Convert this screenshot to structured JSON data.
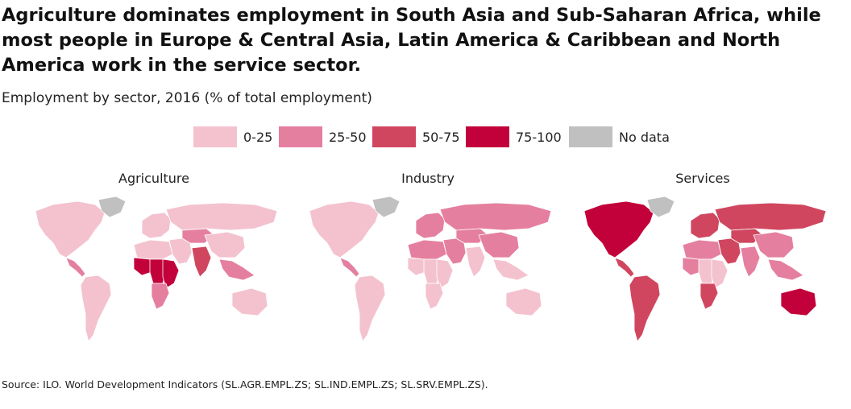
{
  "title": "Agriculture dominates employment in South Asia and Sub-Saharan Africa, while most people in Europe & Central Asia, Latin America & Caribbean and North America work in the service sector.",
  "subtitle": "Employment by sector, 2016 (% of total employment)",
  "legend": [
    {
      "label": "0-25",
      "color": "#f4c2cf"
    },
    {
      "label": "25-50",
      "color": "#e57f9f"
    },
    {
      "label": "50-75",
      "color": "#d0465f"
    },
    {
      "label": "75-100",
      "color": "#c2003a"
    },
    {
      "label": "No data",
      "color": "#c0c0c0"
    }
  ],
  "maps": [
    {
      "title": "Agriculture",
      "regions": {
        "greenland": "No data",
        "north_america": "0-25",
        "central_america": "25-50",
        "south_america": "0-25",
        "europe": "0-25",
        "russia": "0-25",
        "central_asia": "25-50",
        "middle_east": "0-25",
        "north_africa": "0-25",
        "west_africa": "75-100",
        "central_africa": "75-100",
        "east_africa": "75-100",
        "southern_africa": "25-50",
        "south_asia": "50-75",
        "china": "0-25",
        "southeast_asia": "25-50",
        "australia": "0-25"
      }
    },
    {
      "title": "Industry",
      "regions": {
        "greenland": "No data",
        "north_america": "0-25",
        "central_america": "25-50",
        "south_america": "0-25",
        "europe": "25-50",
        "russia": "25-50",
        "central_asia": "25-50",
        "middle_east": "25-50",
        "north_africa": "25-50",
        "west_africa": "0-25",
        "central_africa": "0-25",
        "east_africa": "0-25",
        "southern_africa": "0-25",
        "south_asia": "0-25",
        "china": "25-50",
        "southeast_asia": "0-25",
        "australia": "0-25"
      }
    },
    {
      "title": "Services",
      "regions": {
        "greenland": "No data",
        "north_america": "75-100",
        "central_america": "50-75",
        "south_america": "50-75",
        "europe": "50-75",
        "russia": "50-75",
        "central_asia": "50-75",
        "middle_east": "50-75",
        "north_africa": "25-50",
        "west_africa": "25-50",
        "central_africa": "0-25",
        "east_africa": "0-25",
        "southern_africa": "50-75",
        "south_asia": "25-50",
        "china": "25-50",
        "southeast_asia": "25-50",
        "australia": "75-100"
      }
    }
  ],
  "source": "Source: ILO. World Development Indicators (SL.AGR.EMPL.ZS; SL.IND.EMPL.ZS; SL.SRV.EMPL.ZS)."
}
